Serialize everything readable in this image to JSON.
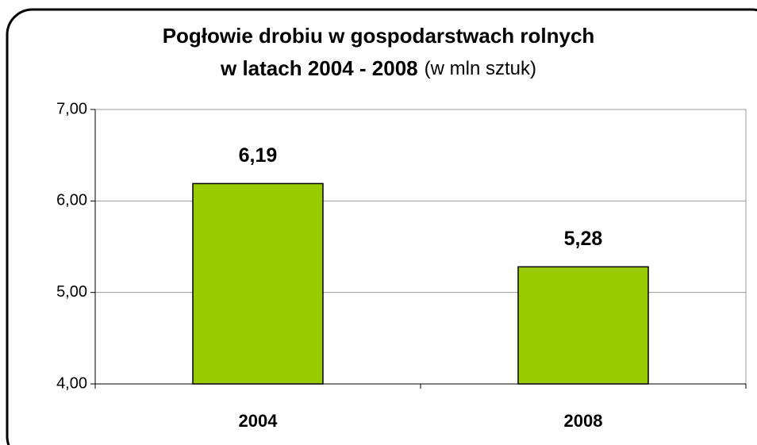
{
  "chart_data": {
    "type": "bar",
    "title": [
      "Pogłowie drobiu w gospodarstwach rolnych",
      "w latach 2004 - 2008"
    ],
    "subtitle": "(w mln sztuk)",
    "categories": [
      "2004",
      "2008"
    ],
    "values": [
      6.19,
      5.28
    ],
    "value_labels": [
      "6,19",
      "5,28"
    ],
    "color": "#99cc00",
    "ylim": [
      4,
      7
    ],
    "yticks": [
      {
        "value": 4,
        "label": "4,00"
      },
      {
        "value": 5,
        "label": "5,00"
      },
      {
        "value": 6,
        "label": "6,00"
      },
      {
        "value": 7,
        "label": "7,00"
      }
    ],
    "grid": true
  }
}
